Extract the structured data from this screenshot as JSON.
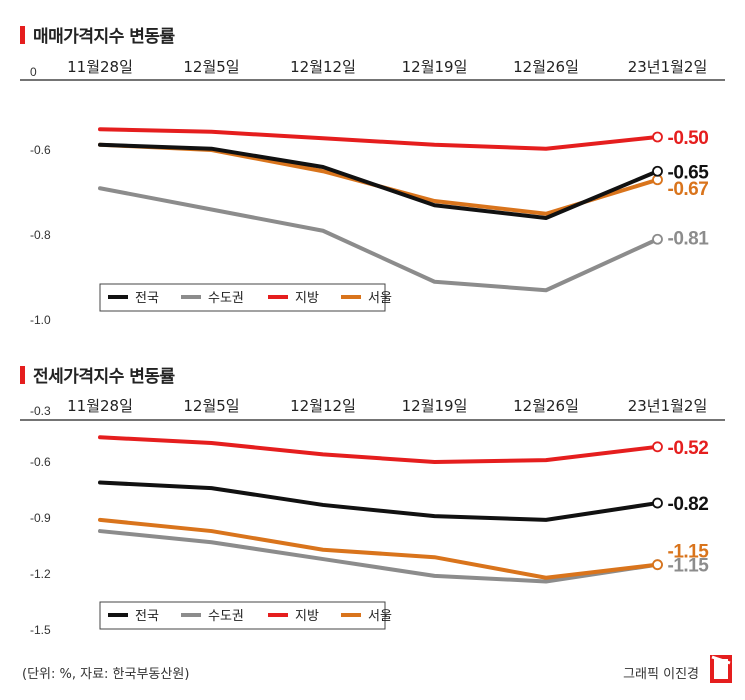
{
  "footer": {
    "source": "(단위: %, 자료: 한국부동산원)",
    "credit": "그래픽 이진경"
  },
  "colors": {
    "전국": "#111111",
    "수도권": "#8c8c8c",
    "지방": "#e51e1e",
    "서울": "#d9741c",
    "accent": "#e51e1e"
  },
  "chart_data": [
    {
      "type": "line",
      "title": "매매가격지수 변동률",
      "categories": [
        "11월28일",
        "12월5일",
        "12월12일",
        "12월19일",
        "12월26일",
        "23년1월2일"
      ],
      "y_ticks": [
        "0",
        "-0.6",
        "-0.8",
        "-1.0"
      ],
      "ylim": [
        -1.0,
        0
      ],
      "grid": false,
      "legend_position": "bottom-left",
      "series": [
        {
          "name": "전국",
          "values": [
            -0.56,
            -0.59,
            -0.64,
            -0.73,
            -0.76,
            -0.65
          ],
          "end_label": "-0.65"
        },
        {
          "name": "수도권",
          "values": [
            -0.69,
            -0.74,
            -0.79,
            -0.91,
            -0.93,
            -0.81
          ],
          "end_label": "-0.81"
        },
        {
          "name": "지방",
          "values": [
            -0.44,
            -0.46,
            -0.51,
            -0.56,
            -0.59,
            -0.5
          ],
          "end_label": "-0.50"
        },
        {
          "name": "서울",
          "values": [
            -0.56,
            -0.6,
            -0.65,
            -0.72,
            -0.75,
            -0.67
          ],
          "end_label": "-0.67"
        }
      ]
    },
    {
      "type": "line",
      "title": "전세가격지수 변동률",
      "categories": [
        "11월28일",
        "12월5일",
        "12월12일",
        "12월19일",
        "12월26일",
        "23년1월2일"
      ],
      "y_ticks": [
        "-0.3",
        "-0.6",
        "-0.9",
        "-1.2",
        "-1.5"
      ],
      "ylim": [
        -1.5,
        -0.3
      ],
      "grid": false,
      "legend_position": "bottom-left",
      "series": [
        {
          "name": "전국",
          "values": [
            -0.71,
            -0.74,
            -0.83,
            -0.89,
            -0.91,
            -0.82
          ],
          "end_label": "-0.82"
        },
        {
          "name": "수도권",
          "values": [
            -0.97,
            -1.03,
            -1.12,
            -1.21,
            -1.24,
            -1.15
          ],
          "end_label": "-1.15"
        },
        {
          "name": "지방",
          "values": [
            -0.47,
            -0.5,
            -0.56,
            -0.6,
            -0.59,
            -0.52
          ],
          "end_label": "-0.52"
        },
        {
          "name": "서울",
          "values": [
            -0.91,
            -0.97,
            -1.07,
            -1.11,
            -1.22,
            -1.15
          ],
          "end_label": "-1.15"
        }
      ]
    }
  ]
}
